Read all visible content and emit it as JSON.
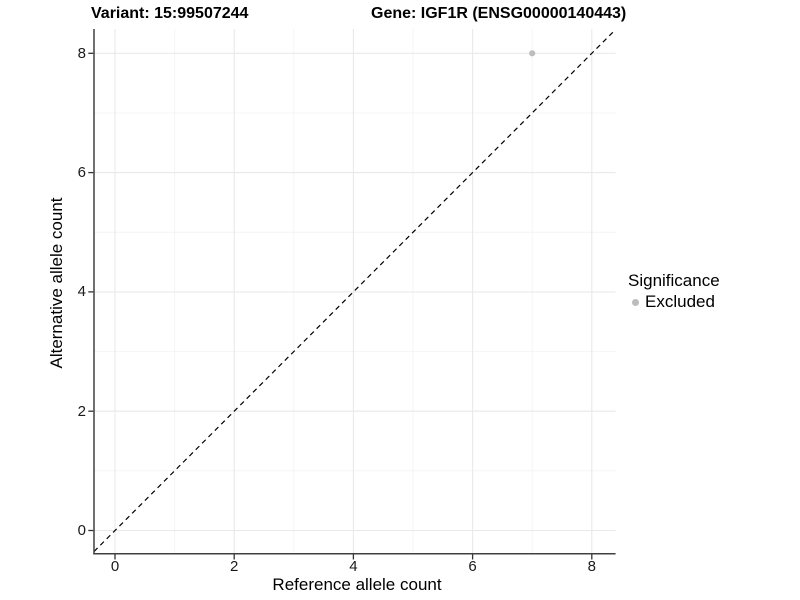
{
  "chart_data": {
    "type": "scatter",
    "title_left": "Variant: 15:99507244",
    "title_right": "Gene: IGF1R (ENSG00000140443)",
    "xlabel": "Reference allele count",
    "ylabel": "Alternative allele count",
    "xlim": [
      -0.4,
      8.4
    ],
    "ylim": [
      -0.4,
      8.4
    ],
    "xticks": [
      0,
      2,
      4,
      6,
      8
    ],
    "yticks": [
      0,
      2,
      4,
      6,
      8
    ],
    "xticks_minor": [
      1,
      3,
      5,
      7
    ],
    "yticks_minor": [
      1,
      3,
      5,
      7
    ],
    "grid": "major+minor",
    "points": [
      {
        "x": 7,
        "y": 8,
        "series": "Excluded"
      }
    ],
    "reference_line": {
      "equation": "y = x",
      "linestyle": "dashed",
      "color": "#000000"
    },
    "legend": {
      "title": "Significance",
      "position": "right",
      "items": [
        {
          "label": "Excluded",
          "marker": "circle",
          "color": "#bdbdbd"
        }
      ]
    },
    "colors": {
      "background": "#ffffff",
      "grid_major": "#e9e9e9",
      "grid_minor": "#f4f4f4",
      "axis_line": "#404040",
      "tick_mark": "#333333",
      "tick_label": "#1a1a1a",
      "point_excluded": "#bdbdbd"
    }
  }
}
